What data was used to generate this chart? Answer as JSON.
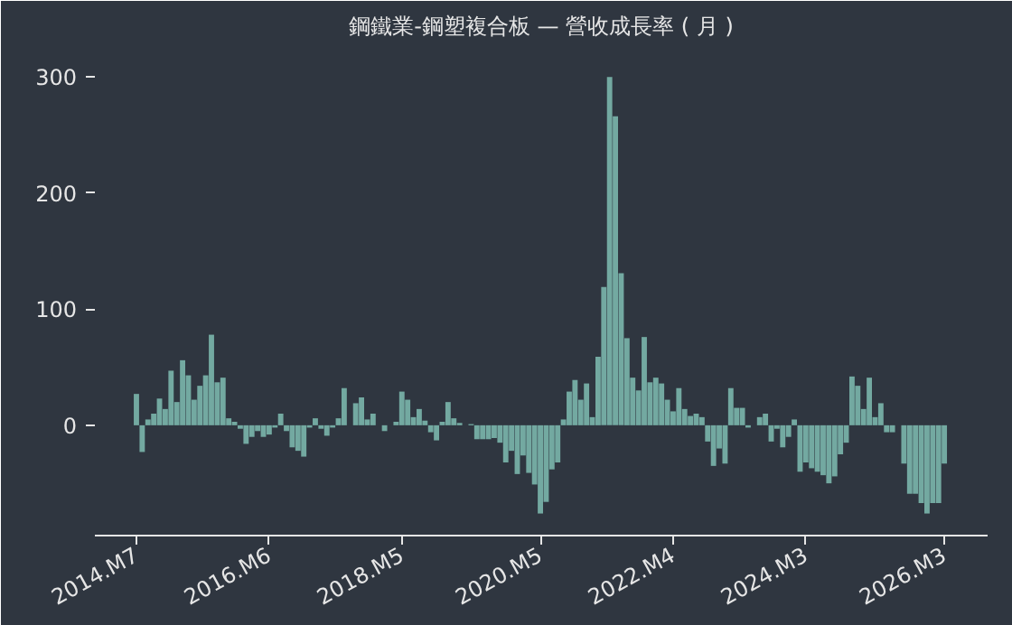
{
  "chart_data": {
    "type": "bar",
    "title": "鋼鐵業-鋼塑複合板 — 營收成長率 ( 月 )",
    "categories": [
      "2014.M7",
      null,
      null,
      null,
      null,
      null,
      null,
      null,
      null,
      null,
      null,
      null,
      null,
      null,
      null,
      null,
      null,
      null,
      null,
      null,
      null,
      null,
      null,
      "2016.M6",
      null,
      null,
      null,
      null,
      null,
      null,
      null,
      null,
      null,
      null,
      null,
      null,
      null,
      null,
      null,
      null,
      null,
      null,
      null,
      null,
      null,
      null,
      "2018.M5",
      null,
      null,
      null,
      null,
      null,
      null,
      null,
      null,
      null,
      null,
      null,
      null,
      null,
      null,
      null,
      null,
      null,
      null,
      null,
      null,
      null,
      null,
      null,
      "2020.M5",
      null,
      null,
      null,
      null,
      null,
      null,
      null,
      null,
      null,
      null,
      null,
      null,
      null,
      null,
      null,
      null,
      null,
      null,
      null,
      null,
      null,
      null,
      "2022.M4",
      null,
      null,
      null,
      null,
      null,
      null,
      null,
      null,
      null,
      null,
      null,
      null,
      null,
      null,
      null,
      null,
      null,
      null,
      null,
      null,
      null,
      null,
      "2024.M3",
      null,
      null,
      null,
      null,
      null,
      null,
      null,
      null,
      null,
      null,
      null,
      null,
      null,
      null,
      null,
      null,
      null,
      null,
      null,
      null,
      null,
      null,
      null,
      "2026.M3"
    ],
    "values": [
      27,
      -23,
      5,
      10,
      23,
      14,
      47,
      20,
      56,
      43,
      22,
      34,
      43,
      78,
      37,
      41,
      6,
      3,
      -3,
      -16,
      -10,
      -5,
      -10,
      -8,
      -2,
      10,
      -5,
      -19,
      -22,
      -27,
      -2,
      6,
      -3,
      -9,
      -2,
      6,
      32,
      0,
      19,
      24,
      5,
      10,
      0,
      -5,
      0,
      3,
      29,
      22,
      7,
      14,
      4,
      -6,
      -13,
      3,
      20,
      6,
      2,
      0,
      1,
      -12,
      -12,
      -12,
      -11,
      -15,
      -32,
      -22,
      -42,
      -26,
      -41,
      -51,
      -76,
      -66,
      -38,
      -32,
      5,
      29,
      39,
      22,
      36,
      7,
      59,
      119,
      300,
      266,
      131,
      75,
      41,
      30,
      76,
      37,
      41,
      36,
      22,
      12,
      32,
      14,
      8,
      10,
      7,
      -14,
      -35,
      -20,
      -33,
      32,
      15,
      15,
      -2,
      0,
      7,
      10,
      -14,
      -3,
      -19,
      -10,
      5,
      -40,
      -32,
      -37,
      -40,
      -43,
      -50,
      -44,
      -25,
      -15,
      42,
      34,
      14,
      41,
      7,
      19,
      -6,
      -6,
      0,
      -33,
      -59,
      -59,
      -67,
      -76,
      -67,
      -67,
      -33
    ],
    "color": "#73a9a1",
    "ylim": [
      -95,
      325
    ],
    "yticks": [
      0,
      100,
      200,
      300
    ],
    "grid": false
  }
}
